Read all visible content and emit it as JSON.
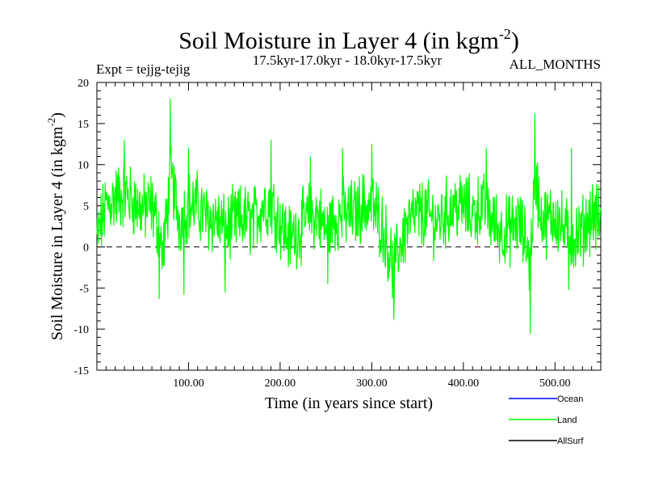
{
  "chart_data": {
    "type": "line",
    "title": "Soil Moisture in Layer 4 (in kgm",
    "title_sup": "-2",
    "title_close": ")",
    "subtitle_left": "Expt = tejjg-tejig",
    "subtitle_center": "17.5kyr-17.0kyr - 18.0kyr-17.5kyr",
    "subtitle_right": "ALL_MONTHS",
    "xlabel": "Time (in years since start)",
    "ylabel": "Soil Moisture in Layer 4 (in kgm",
    "ylabel_sup": "-2",
    "ylabel_close": ")",
    "xlim": [
      0,
      550
    ],
    "ylim": [
      -15,
      20
    ],
    "x_ticks": [
      100,
      200,
      300,
      400,
      500
    ],
    "x_tick_labels": [
      "100.00",
      "200.00",
      "300.00",
      "400.00",
      "500.00"
    ],
    "y_ticks": [
      -15,
      -10,
      -5,
      0,
      5,
      10,
      15,
      20
    ],
    "y_tick_labels": [
      "-15",
      "-10",
      "-5",
      "0",
      "5",
      "10",
      "15",
      "20"
    ],
    "reference_line": 0,
    "legend": [
      {
        "name": "Ocean",
        "color": "#0000ff"
      },
      {
        "name": "Land",
        "color": "#00ff00"
      },
      {
        "name": "AllSurf",
        "color": "#000000"
      }
    ],
    "series": [
      {
        "name": "Land",
        "color": "#00ff00",
        "samples_per_year": 2,
        "baseline": [
          [
            0,
            1
          ],
          [
            10,
            5
          ],
          [
            20,
            6
          ],
          [
            30,
            6.5
          ],
          [
            40,
            5.5
          ],
          [
            50,
            4.5
          ],
          [
            60,
            5
          ],
          [
            68,
            2
          ],
          [
            72,
            -1
          ],
          [
            76,
            3
          ],
          [
            80,
            9
          ],
          [
            84,
            7
          ],
          [
            90,
            3
          ],
          [
            100,
            5
          ],
          [
            110,
            5
          ],
          [
            120,
            3.5
          ],
          [
            130,
            3.5
          ],
          [
            140,
            2
          ],
          [
            150,
            3
          ],
          [
            160,
            3.5
          ],
          [
            170,
            3
          ],
          [
            180,
            5
          ],
          [
            190,
            5.5
          ],
          [
            200,
            3
          ],
          [
            210,
            1
          ],
          [
            220,
            2
          ],
          [
            230,
            3.5
          ],
          [
            240,
            4
          ],
          [
            250,
            2
          ],
          [
            260,
            3.5
          ],
          [
            270,
            4
          ],
          [
            280,
            4
          ],
          [
            290,
            5
          ],
          [
            300,
            5
          ],
          [
            310,
            3
          ],
          [
            318,
            0
          ],
          [
            324,
            -3
          ],
          [
            330,
            0
          ],
          [
            340,
            3
          ],
          [
            350,
            4
          ],
          [
            360,
            4
          ],
          [
            370,
            3
          ],
          [
            380,
            4
          ],
          [
            390,
            5
          ],
          [
            400,
            5
          ],
          [
            410,
            4
          ],
          [
            420,
            5
          ],
          [
            430,
            3.5
          ],
          [
            440,
            2
          ],
          [
            450,
            2
          ],
          [
            460,
            3
          ],
          [
            470,
            0
          ],
          [
            473,
            -2
          ],
          [
            476,
            5
          ],
          [
            480,
            8
          ],
          [
            484,
            4
          ],
          [
            490,
            3
          ],
          [
            500,
            4
          ],
          [
            510,
            2
          ],
          [
            520,
            1
          ],
          [
            530,
            2
          ],
          [
            540,
            4
          ],
          [
            550,
            3
          ]
        ],
        "peaks": [
          [
            80,
            18
          ],
          [
            478,
            16.2
          ],
          [
            30,
            13
          ],
          [
            100,
            12
          ],
          [
            190,
            13
          ],
          [
            233,
            11
          ],
          [
            268,
            12
          ],
          [
            300,
            12.5
          ],
          [
            425,
            12
          ],
          [
            518,
            12
          ]
        ],
        "troughs": [
          [
            68,
            -6.3
          ],
          [
            95,
            -5.8
          ],
          [
            140,
            -5.5
          ],
          [
            324,
            -8.8
          ],
          [
            473,
            -10.5
          ],
          [
            515,
            -5.2
          ],
          [
            252,
            -4.5
          ]
        ]
      }
    ]
  }
}
